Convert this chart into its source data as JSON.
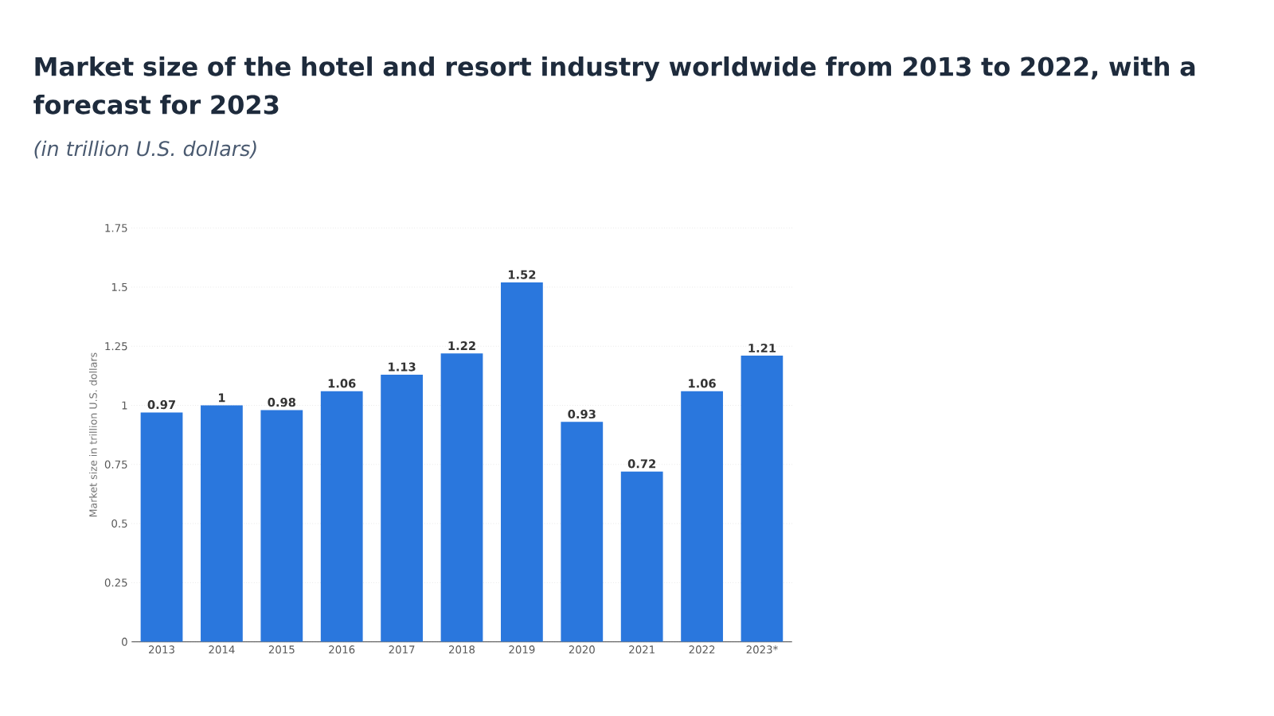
{
  "chart_data": {
    "type": "bar",
    "title": "Market size of the hotel and resort industry worldwide from 2013 to 2022, with a forecast for 2023",
    "subtitle": "(in trillion U.S. dollars)",
    "ylabel": "Market size in trillion U.S. dollars",
    "categories": [
      "2013",
      "2014",
      "2015",
      "2016",
      "2017",
      "2018",
      "2019",
      "2020",
      "2021",
      "2022",
      "2023*"
    ],
    "values": [
      0.97,
      1,
      0.98,
      1.06,
      1.13,
      1.22,
      1.52,
      0.93,
      0.72,
      1.06,
      1.21
    ],
    "color": "#2a77dd",
    "ylim": [
      0,
      1.75
    ],
    "yticks": [
      0,
      0.25,
      0.5,
      0.75,
      1,
      1.25,
      1.5,
      1.75
    ],
    "grid": "y",
    "data_labels": true
  }
}
